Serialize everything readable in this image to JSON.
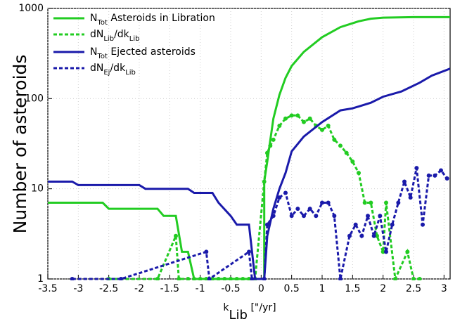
{
  "chart_data": {
    "type": "line",
    "ylabel": "Number of asteroids",
    "xlabel": [
      "k",
      "Lib",
      " [\"/yr]"
    ],
    "xlim": [
      -3.5,
      3.1
    ],
    "ylim": [
      1,
      1000
    ],
    "yscale": "log",
    "xticks": [
      -3.5,
      -3,
      -2.5,
      -2,
      -1.5,
      -1,
      -0.5,
      0,
      0.5,
      1,
      1.5,
      2,
      2.5,
      3
    ],
    "yticks": [
      1,
      10,
      100,
      1000
    ],
    "grid": true,
    "legend": "upper left",
    "series": [
      {
        "name": [
          "N",
          "Tot",
          " Asteroids in Libration"
        ],
        "color": "#22cc22",
        "style": "solid",
        "markers": false,
        "x": [
          -3.5,
          -2.6,
          -2.5,
          -1.7,
          -1.6,
          -1.4,
          -1.3,
          -1.2,
          -1.1,
          0.05,
          0.05,
          0.1,
          0.2,
          0.3,
          0.4,
          0.5,
          0.7,
          1.0,
          1.3,
          1.6,
          1.8,
          2.0,
          2.5,
          3.1
        ],
        "values": [
          7,
          7,
          6,
          6,
          5,
          5,
          2,
          2,
          1,
          1,
          12,
          20,
          60,
          110,
          170,
          230,
          330,
          480,
          620,
          720,
          770,
          790,
          800,
          800
        ]
      },
      {
        "name": [
          "dN",
          "Lib",
          "/dk",
          "Lib"
        ],
        "color": "#22cc22",
        "style": "dashed",
        "markers": true,
        "x": [
          -2.5,
          -1.7,
          -1.4,
          -1.35,
          -1.2,
          -1.1,
          -1.0,
          -0.9,
          -0.8,
          -0.7,
          -0.6,
          -0.5,
          -0.4,
          -0.3,
          -0.2,
          -0.1,
          0.05,
          0.1,
          0.15,
          0.2,
          0.3,
          0.4,
          0.5,
          0.6,
          0.7,
          0.8,
          0.9,
          1.0,
          1.1,
          1.2,
          1.3,
          1.4,
          1.5,
          1.6,
          1.7,
          1.8,
          1.9,
          2.0,
          2.05,
          2.2,
          2.4,
          2.5,
          2.6
        ],
        "values": [
          1,
          1,
          3,
          1,
          1,
          1,
          1,
          1,
          1,
          1,
          1,
          1,
          1,
          1,
          1,
          1,
          12,
          25,
          30,
          35,
          50,
          60,
          65,
          65,
          55,
          60,
          50,
          45,
          50,
          35,
          30,
          25,
          20,
          15,
          7,
          7,
          3,
          2,
          7,
          1,
          2,
          1,
          1
        ]
      },
      {
        "name": [
          "N",
          "Tot",
          " Ejected asteroids"
        ],
        "color": "#1a1aaa",
        "style": "solid",
        "markers": false,
        "x": [
          -3.5,
          -3.1,
          -3.0,
          -2.0,
          -1.9,
          -1.2,
          -1.1,
          -0.8,
          -0.7,
          -0.5,
          -0.4,
          -0.2,
          -0.1,
          0.05,
          0.1,
          0.2,
          0.3,
          0.4,
          0.5,
          0.7,
          1.0,
          1.3,
          1.5,
          1.8,
          2.0,
          2.3,
          2.6,
          2.8,
          3.1
        ],
        "values": [
          12,
          12,
          11,
          11,
          10,
          10,
          9,
          9,
          7,
          5,
          4,
          4,
          1,
          1,
          3,
          6,
          10,
          15,
          26,
          38,
          55,
          74,
          78,
          90,
          105,
          120,
          150,
          180,
          215
        ]
      },
      {
        "name": [
          "dN",
          "Ej",
          "/dk",
          "Lib"
        ],
        "color": "#1a1aaa",
        "style": "dashed",
        "markers": true,
        "x": [
          -3.1,
          -2.3,
          -0.9,
          -0.85,
          -0.2,
          -0.15,
          0.05,
          0.1,
          0.2,
          0.3,
          0.4,
          0.5,
          0.6,
          0.7,
          0.8,
          0.9,
          1.0,
          1.1,
          1.2,
          1.3,
          1.45,
          1.55,
          1.65,
          1.75,
          1.85,
          1.95,
          2.05,
          2.15,
          2.25,
          2.35,
          2.45,
          2.55,
          2.65,
          2.75,
          2.85,
          2.95,
          3.05
        ],
        "values": [
          1,
          1,
          2,
          1,
          2,
          1,
          1,
          4,
          5,
          8,
          9,
          5,
          6,
          5,
          6,
          5,
          7,
          7,
          5,
          1,
          3,
          4,
          3,
          5,
          3,
          5,
          2,
          4,
          7,
          12,
          8,
          17,
          4,
          14,
          14,
          16,
          13
        ]
      }
    ]
  }
}
